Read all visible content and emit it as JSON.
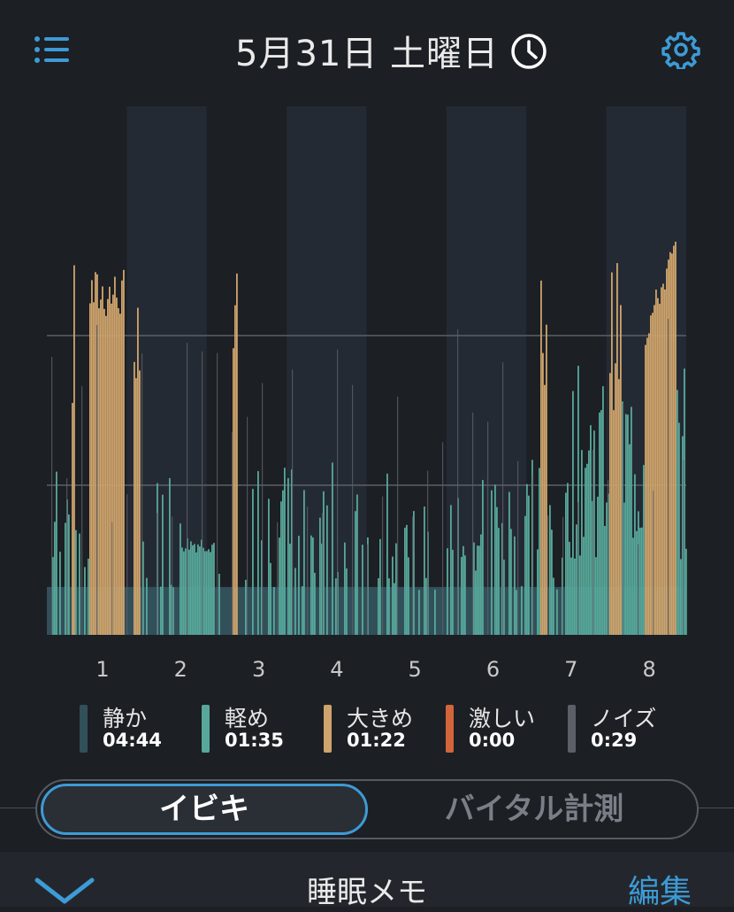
{
  "header": {
    "title": "5月31日 土曜日",
    "menu_icon": "list-icon",
    "history_icon": "clock-icon",
    "settings_icon": "gear-icon"
  },
  "colors": {
    "background": "#1c1f24",
    "accent": "#3d9bd6",
    "quiet": "#32505a",
    "light": "#57a89a",
    "loud": "#cfa46c",
    "intense": "#d2653a",
    "noise": "#5b5f66"
  },
  "chart_data": {
    "type": "bar",
    "x_ticks": [
      "1",
      "2",
      "3",
      "4",
      "5",
      "6",
      "7",
      "8"
    ],
    "y_gridlines": [
      1,
      2
    ],
    "ylim": [
      0,
      3
    ],
    "quiet_level": 0.32,
    "series": [
      {
        "name": "静か"
      },
      {
        "name": "軽め"
      },
      {
        "name": "大きめ"
      },
      {
        "name": "激しい"
      },
      {
        "name": "ノイズ"
      }
    ]
  },
  "legend": [
    {
      "label": "静か",
      "time": "04:44",
      "color": "#32505a"
    },
    {
      "label": "軽め",
      "time": "01:35",
      "color": "#57a89a"
    },
    {
      "label": "大きめ",
      "time": "01:22",
      "color": "#cfa46c"
    },
    {
      "label": "激しい",
      "time": "0:00",
      "color": "#d2653a"
    },
    {
      "label": "ノイズ",
      "time": "0:29",
      "color": "#5b5f66"
    }
  ],
  "tabs": [
    {
      "label": "イビキ",
      "active": true
    },
    {
      "label": "バイタル計測",
      "active": false
    }
  ],
  "bottom": {
    "title": "睡眠メモ",
    "edit_label": "編集",
    "expand_icon": "chevron-down-icon"
  }
}
